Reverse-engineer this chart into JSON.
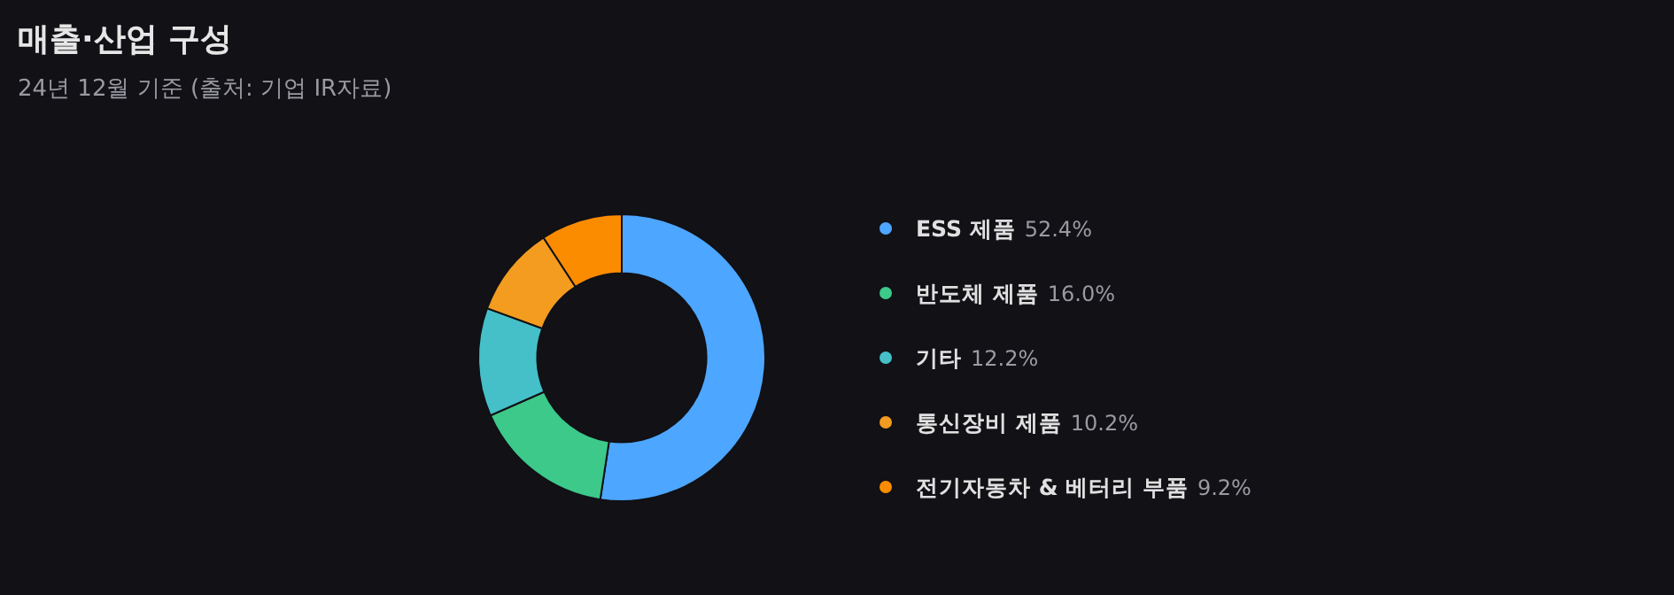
{
  "chart_data": {
    "type": "donut",
    "title": "매출·산업 구성",
    "subtitle": "24년 12월 기준 (출처: 기업 IR자료)",
    "categories": [
      "ESS 제품",
      "반도체 제품",
      "기타",
      "통신장비 제품",
      "전기자동차 & 베터리 부품"
    ],
    "values": [
      52.4,
      16.0,
      12.2,
      10.2,
      9.2
    ],
    "value_labels": [
      "52.4%",
      "16.0%",
      "12.2%",
      "10.2%",
      "9.2%"
    ],
    "colors": [
      "#4da6ff",
      "#3cc98a",
      "#45c0c8",
      "#f39c1f",
      "#fb8c00"
    ],
    "legend": "right"
  }
}
